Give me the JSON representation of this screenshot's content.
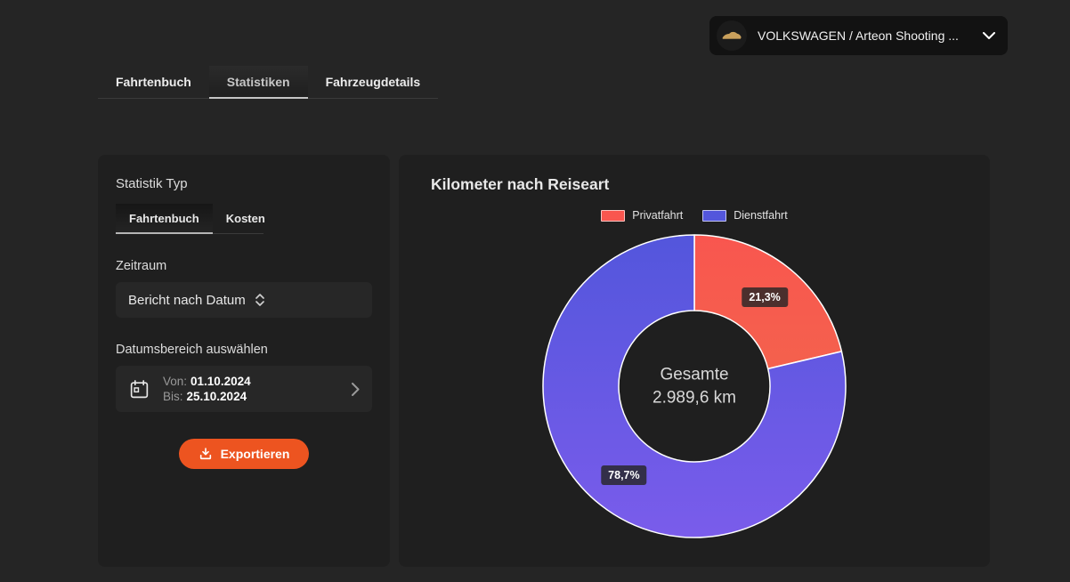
{
  "vehicle_selector": {
    "label": "VOLKSWAGEN / Arteon Shooting ..."
  },
  "main_tabs": [
    {
      "label": "Fahrtenbuch",
      "active": false
    },
    {
      "label": "Statistiken",
      "active": true
    },
    {
      "label": "Fahrzeugdetails",
      "active": false
    }
  ],
  "sidebar": {
    "section_title": "Statistik Typ",
    "type_tabs": [
      {
        "label": "Fahrtenbuch",
        "active": true
      },
      {
        "label": "Kosten",
        "active": false
      }
    ],
    "zeitraum_label": "Zeitraum",
    "report_select_value": "Bericht nach Datum",
    "date_section_label": "Datumsbereich auswählen",
    "date_range": {
      "von_label": "Von:",
      "von_value": "01.10.2024",
      "bis_label": "Bis:",
      "bis_value": "25.10.2024"
    },
    "export_label": "Exportieren"
  },
  "chart_data": {
    "type": "pie",
    "donut": true,
    "title": "Kilometer nach Reiseart",
    "center_label": "Gesamte",
    "center_value": "2.989,6 km",
    "total_km": 2989.6,
    "legend_position": "top",
    "slices": [
      {
        "name": "Privatfahrt",
        "percent": 21.3,
        "percent_label": "21,3%",
        "color": "#f9564f",
        "color_end": "#f4614d"
      },
      {
        "name": "Dienstfahrt",
        "percent": 78.7,
        "percent_label": "78,7%",
        "color": "#5356dc",
        "color_end": "#7a5ceb"
      }
    ]
  },
  "colors": {
    "accent_orange": "#ed5420",
    "privatfahrt_red": "#f9564f",
    "dienstfahrt_blue": "#5b58e0",
    "panel_bg": "#1f1f1f",
    "page_bg": "#252525"
  }
}
